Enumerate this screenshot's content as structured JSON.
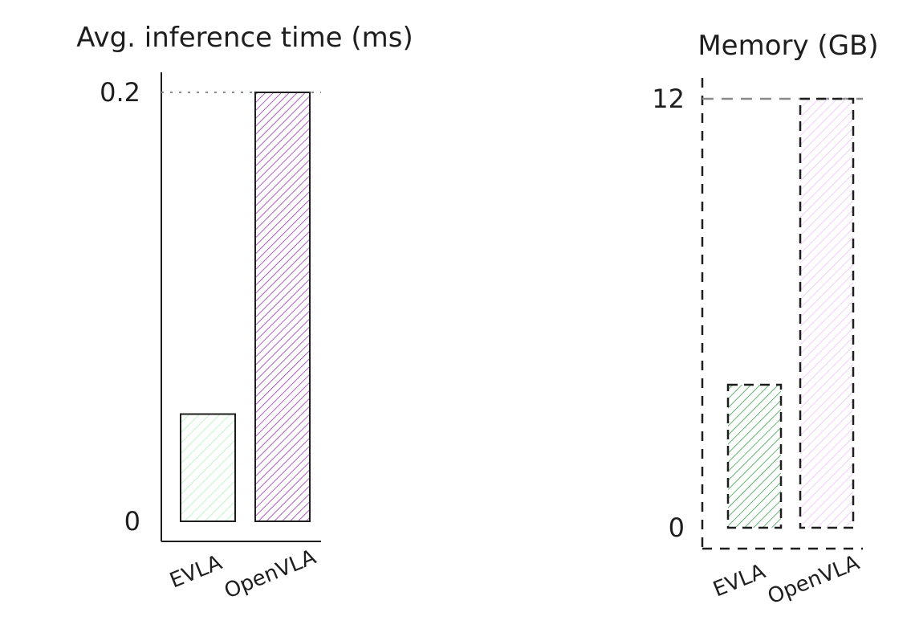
{
  "chart_data": [
    {
      "type": "bar",
      "title": "Avg. inference time (ms)",
      "categories": [
        "EVLA",
        "OpenVLA"
      ],
      "values": [
        0.05,
        0.2
      ],
      "ylim": [
        0,
        0.2
      ],
      "yticks": [
        "0",
        "0.2"
      ],
      "colors": [
        "#b2f2bb",
        "#9c36b5"
      ],
      "grid": false
    },
    {
      "type": "bar",
      "title": "Memory (GB)",
      "categories": [
        "EVLA",
        "OpenVLA"
      ],
      "values": [
        4,
        12
      ],
      "ylim": [
        0,
        12
      ],
      "yticks": [
        "0",
        "12"
      ],
      "colors": [
        "#2f9e44",
        "#eebefa"
      ],
      "grid": false
    }
  ]
}
